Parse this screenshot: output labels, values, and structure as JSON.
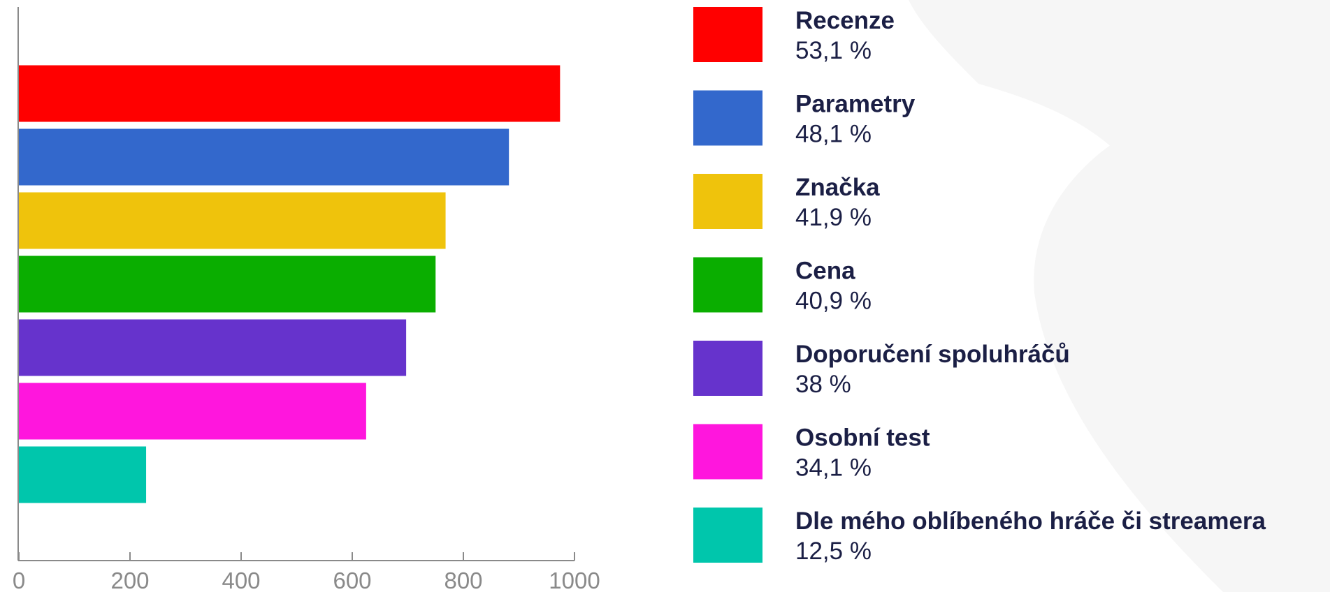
{
  "chart_data": {
    "type": "bar",
    "orientation": "horizontal",
    "categories": [
      "Recenze",
      "Parametry",
      "Značka",
      "Cena",
      "Doporučení spoluhráčů",
      "Osobní test",
      "Dle mého oblíbeného hráče či streamera"
    ],
    "values": [
      974,
      882,
      768,
      750,
      697,
      625,
      229
    ],
    "percent_labels": [
      "53,1 %",
      "48,1 %",
      "41,9 %",
      "40,9 %",
      "38 %",
      "34,1 %",
      "12,5 %"
    ],
    "colors": [
      "#ff0000",
      "#3368cc",
      "#efc30c",
      "#0aae00",
      "#6633cc",
      "#ff16dd",
      "#00c6ac"
    ],
    "xlim": [
      0,
      1000
    ],
    "xticks": [
      0,
      200,
      400,
      600,
      800,
      1000
    ],
    "legend": "right",
    "grid": false
  }
}
